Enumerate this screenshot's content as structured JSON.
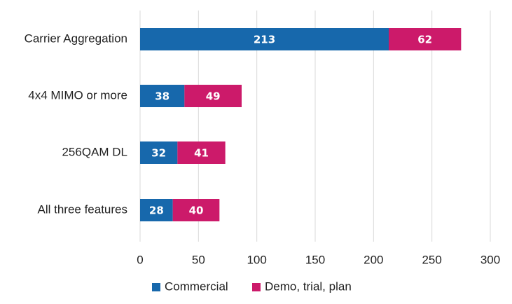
{
  "chart_data": {
    "type": "bar",
    "orientation": "horizontal",
    "stacked": true,
    "categories": [
      "Carrier Aggregation",
      "4x4 MIMO or more",
      "256QAM DL",
      "All three features"
    ],
    "series": [
      {
        "name": "Commercial",
        "values": [
          213,
          38,
          32,
          28
        ],
        "color": "#1768ac"
      },
      {
        "name": "Demo, trial, plan",
        "values": [
          62,
          49,
          41,
          40
        ],
        "color": "#cc1a6a"
      }
    ],
    "xlim": [
      0,
      300
    ],
    "xticks": [
      0,
      50,
      100,
      150,
      200,
      250,
      300
    ],
    "grid": "vertical",
    "legend_position": "bottom"
  }
}
